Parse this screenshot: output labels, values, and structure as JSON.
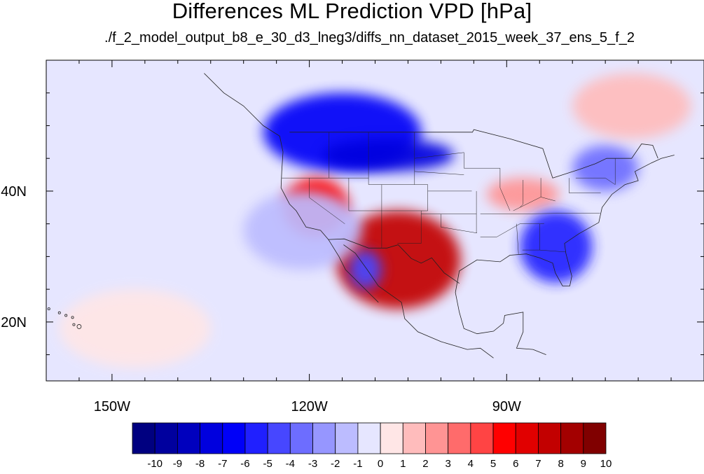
{
  "title": "Differences ML Prediction VPD [hPa]",
  "subtitle": "./f_2_model_output_b8_e_30_d3_lneg3/diffs_nn_dataset_2015_week_37_ens_5_f_2",
  "map": {
    "projection": "lat-lon",
    "lon_range": [
      -160,
      -60
    ],
    "lat_range": [
      11,
      60
    ],
    "lat_labels": [
      {
        "value": 40,
        "text": "40N"
      },
      {
        "value": 20,
        "text": "20N"
      }
    ],
    "lon_labels": [
      {
        "value": -150,
        "text": "150W"
      },
      {
        "value": -120,
        "text": "120W"
      },
      {
        "value": -90,
        "text": "90W"
      }
    ],
    "minor_ticks_deg": 5,
    "features": [
      "coastlines",
      "country-borders",
      "us-state-borders"
    ],
    "regions": [
      {
        "name": "north-west-negative",
        "value": -6,
        "lon": [
          -127,
          -103
        ],
        "lat": [
          43,
          55
        ]
      },
      {
        "name": "northern-plains-negative",
        "value": -7,
        "lon": [
          -118,
          -98
        ],
        "lat": [
          43,
          48
        ]
      },
      {
        "name": "south-west-positive",
        "value": 8,
        "lon": [
          -116,
          -97
        ],
        "lat": [
          22,
          37
        ]
      },
      {
        "name": "california-positive",
        "value": 6,
        "lon": [
          -124,
          -114
        ],
        "lat": [
          33,
          42
        ]
      },
      {
        "name": "ohio-valley-positive",
        "value": 3,
        "lon": [
          -93,
          -82
        ],
        "lat": [
          37,
          42
        ]
      },
      {
        "name": "south-east-negative",
        "value": -5,
        "lon": [
          -88,
          -77
        ],
        "lat": [
          26,
          37
        ]
      },
      {
        "name": "north-east-negative",
        "value": -3,
        "lon": [
          -80,
          -70
        ],
        "lat": [
          40,
          47
        ]
      },
      {
        "name": "baja-negative",
        "value": -4,
        "lon": [
          -114,
          -109
        ],
        "lat": [
          25,
          31
        ]
      },
      {
        "name": "north-pacific-positive",
        "value": 1,
        "lon": [
          -158,
          -135
        ],
        "lat": [
          13,
          25
        ]
      },
      {
        "name": "east-pacific-negative",
        "value": -1,
        "lon": [
          -130,
          -112
        ],
        "lat": [
          28,
          40
        ]
      },
      {
        "name": "north-atlantic-positive",
        "value": 2,
        "lon": [
          -80,
          -62
        ],
        "lat": [
          48,
          58
        ]
      }
    ]
  },
  "colorbar": {
    "labels": [
      "-10",
      "-9",
      "-8",
      "-7",
      "-6",
      "-5",
      "-4",
      "-3",
      "-2",
      "-1",
      "0",
      "1",
      "2",
      "3",
      "4",
      "5",
      "6",
      "7",
      "8",
      "9",
      "10"
    ],
    "colors": [
      "#000080",
      "#00009e",
      "#0000be",
      "#0000de",
      "#0000f8",
      "#2020ff",
      "#4747ff",
      "#6d6dff",
      "#9696ff",
      "#bcbcff",
      "#e6e6ff",
      "#ffe6e6",
      "#ffbcbc",
      "#ff9494",
      "#ff6b6b",
      "#ff4444",
      "#ff0000",
      "#e10000",
      "#c20000",
      "#a30000",
      "#800000"
    ]
  }
}
